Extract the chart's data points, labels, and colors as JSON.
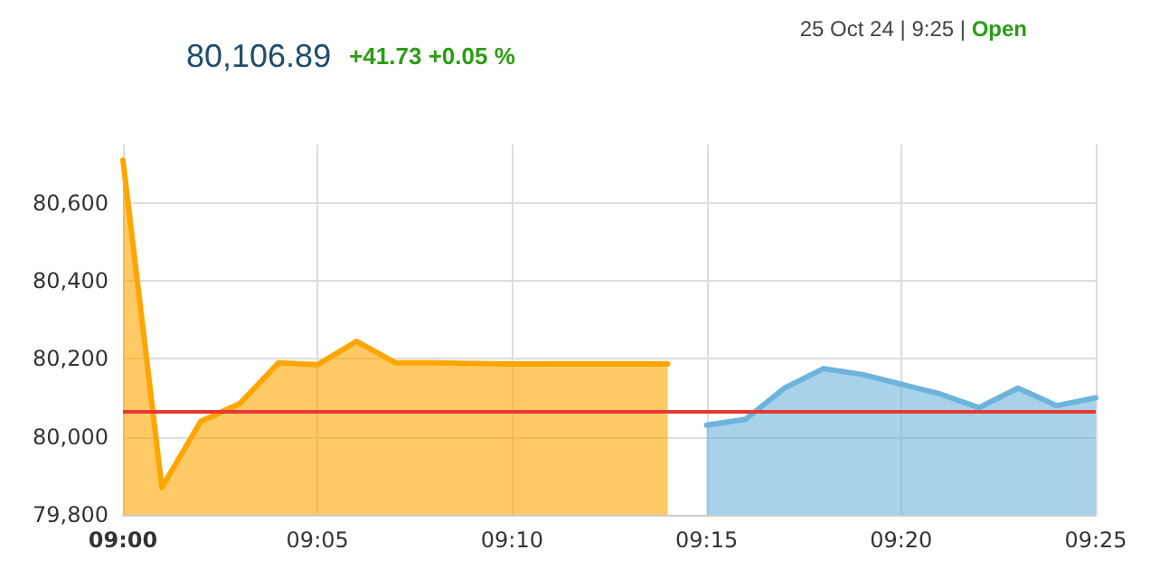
{
  "chart_data": {
    "type": "area",
    "title": "80,106.89",
    "subtitle": "+41.73 +0.05 %",
    "annotations": [
      "25 Oct 24 | 9:25 | ",
      "Open"
    ],
    "series": [
      {
        "color": "#ffa500",
        "x": [
          9,
          9.016667,
          9.033333,
          9.05,
          9.066667,
          9.083333,
          9.1,
          9.116667,
          9.133333,
          9.15,
          9.166667,
          9.183333,
          9.2,
          9.216667,
          9.233333
        ],
        "values": [
          80710,
          79870,
          80040,
          80085,
          80190,
          80185,
          80245,
          80190,
          80190,
          80188,
          80187,
          80187,
          80187,
          80187,
          80187
        ]
      },
      {
        "color": "#6cb4dc",
        "x": [
          9.25,
          9.266667,
          9.283333,
          9.3,
          9.316667,
          9.333333,
          9.35,
          9.366667,
          9.383333,
          9.4,
          9.416667
        ],
        "values": [
          80030,
          80045,
          80125,
          80175,
          80160,
          80135,
          80110,
          80075,
          80125,
          80080,
          80100
        ]
      }
    ],
    "ref_lines": [
      {
        "axis": "y",
        "value": 80065.16,
        "color": "#e53935"
      }
    ],
    "xlim": [
      9,
      9.416667
    ],
    "xticks": [
      {
        "value": 9,
        "label": "09:00"
      },
      {
        "value": 9.083333,
        "label": "09:05"
      },
      {
        "value": 9.166667,
        "label": "09:10"
      },
      {
        "value": 9.25,
        "label": "09:15"
      },
      {
        "value": 9.333333,
        "label": "09:20"
      },
      {
        "value": 9.416667,
        "label": "09:25"
      }
    ],
    "ylim": [
      79800,
      80750
    ],
    "yticks": [
      {
        "value": 79800,
        "label": "79,800"
      },
      {
        "value": 80000,
        "label": "80,000"
      },
      {
        "value": 80200,
        "label": "80,200"
      },
      {
        "value": 80400,
        "label": "80,400"
      },
      {
        "value": 80600,
        "label": "80,600"
      }
    ],
    "grid": true,
    "marker": "none",
    "line_style": "solid"
  }
}
